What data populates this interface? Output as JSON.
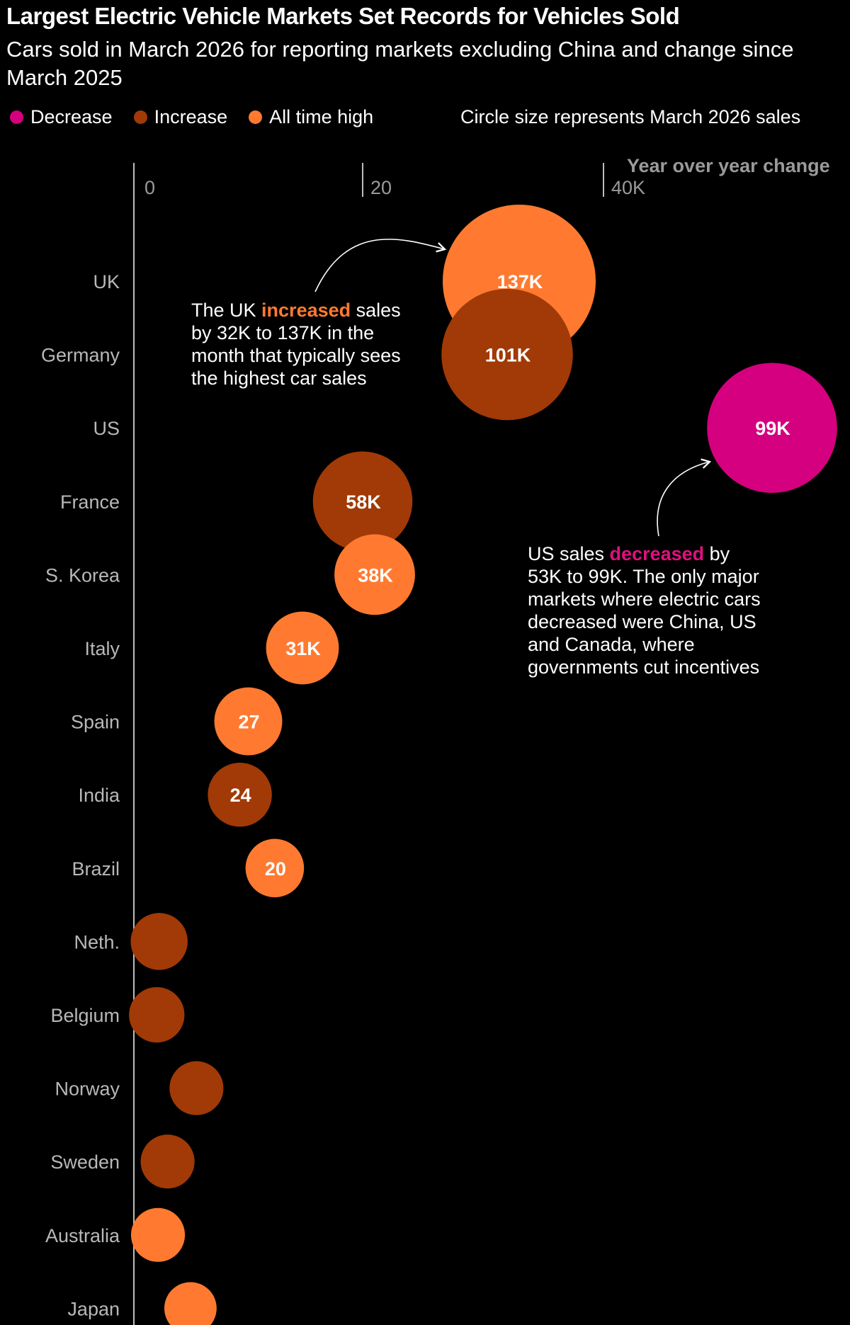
{
  "title": "Largest Electric Vehicle Markets Set Records for Vehicles Sold",
  "subtitle": "Cars sold in March 2026 for reporting markets excluding China and change since March 2025",
  "legend": {
    "items": [
      {
        "label": "Decrease",
        "color": "#d5007f"
      },
      {
        "label": "Increase",
        "color": "#a13a06"
      },
      {
        "label": "All time high",
        "color": "#ff7a30"
      }
    ],
    "note": "Circle size represents March 2026 sales"
  },
  "chart_data": {
    "type": "scatter",
    "title": "Largest Electric Vehicle Markets Set Records for Vehicles Sold",
    "xlabel": "Year over year change",
    "ylabel": "",
    "xlim": [
      0,
      53
    ],
    "x_ticks": [
      {
        "value": 0,
        "label": "0"
      },
      {
        "value": 20,
        "label": "20"
      },
      {
        "value": 40,
        "label": "40K"
      }
    ],
    "size_label": "Circle size represents March 2026 sales",
    "points": [
      {
        "country": "UK",
        "change": 32,
        "sales": 137,
        "label": "137K",
        "category": "All time high"
      },
      {
        "country": "Germany",
        "change": 31,
        "sales": 101,
        "label": "101K",
        "category": "Increase"
      },
      {
        "country": "US",
        "change": 53,
        "sales": 99,
        "label": "99K",
        "category": "Decrease"
      },
      {
        "country": "France",
        "change": 19,
        "sales": 58,
        "label": "58K",
        "category": "Increase"
      },
      {
        "country": "S. Korea",
        "change": 20,
        "sales": 38,
        "label": "38K",
        "category": "All time high"
      },
      {
        "country": "Italy",
        "change": 14,
        "sales": 31,
        "label": "31K",
        "category": "All time high"
      },
      {
        "country": "Spain",
        "change": 9.5,
        "sales": 27,
        "label": "27",
        "category": "All time high"
      },
      {
        "country": "India",
        "change": 8.8,
        "sales": 24,
        "label": "24",
        "category": "Increase"
      },
      {
        "country": "Brazil",
        "change": 11.7,
        "sales": 20,
        "label": "20",
        "category": "All time high"
      },
      {
        "country": "Neth.",
        "change": 2.1,
        "sales": 19,
        "label": "",
        "category": "Increase"
      },
      {
        "country": "Belgium",
        "change": 1.9,
        "sales": 18,
        "label": "",
        "category": "Increase"
      },
      {
        "country": "Norway",
        "change": 5.2,
        "sales": 17,
        "label": "",
        "category": "Increase"
      },
      {
        "country": "Sweden",
        "change": 2.8,
        "sales": 17,
        "label": "",
        "category": "Increase"
      },
      {
        "country": "Australia",
        "change": 2.0,
        "sales": 17,
        "label": "",
        "category": "All time high"
      },
      {
        "country": "Japan",
        "change": 4.7,
        "sales": 16,
        "label": "",
        "category": "All time high"
      }
    ]
  },
  "annotations": {
    "uk": {
      "before": "The UK ",
      "highlight": "increased",
      "after": " sales",
      "rest": [
        "by 32K to 137K in the",
        "month that typically sees",
        "the highest car sales"
      ],
      "highlight_color": "#ff7a30"
    },
    "us": {
      "before": "US sales ",
      "highlight": "decreased",
      "after": " by",
      "rest": [
        "53K to 99K. The only major",
        "markets where electric cars",
        "decreased were China, US",
        "and Canada, where",
        "governments cut incentives"
      ],
      "highlight_color": "#e0107f"
    }
  },
  "colors": {
    "Decrease": "#d5007f",
    "Increase": "#a13a06",
    "All time high": "#ff7a30",
    "axis": "#9a9a9a",
    "label": "#b8b8b8"
  }
}
